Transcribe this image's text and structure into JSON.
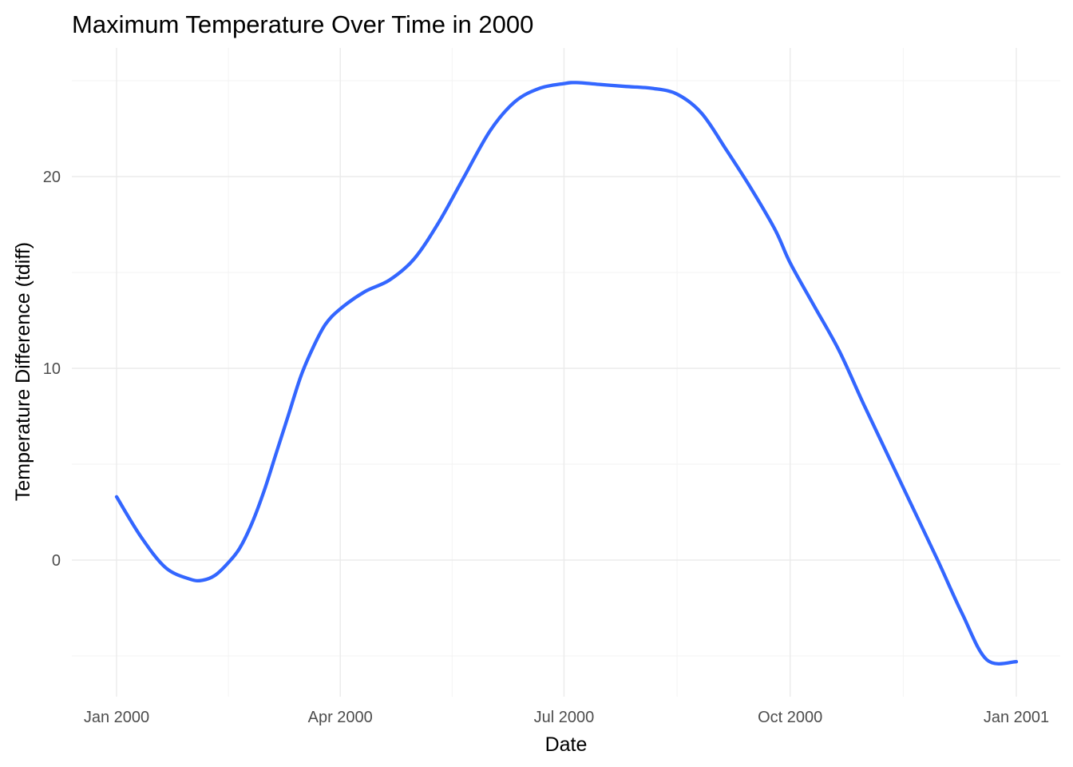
{
  "chart_data": {
    "type": "line",
    "title": "Maximum Temperature Over Time in 2000",
    "xlabel": "Date",
    "ylabel": "Temperature Difference (tdiff)",
    "x_ticks": [
      "Jan 2000",
      "Apr 2000",
      "Jul 2000",
      "Oct 2000",
      "Jan 2001"
    ],
    "x_tick_dates": [
      "2000-01-01",
      "2000-04-01",
      "2000-07-01",
      "2000-10-01",
      "2001-01-01"
    ],
    "y_ticks": [
      0,
      10,
      20
    ],
    "ylim": [
      -7,
      27
    ],
    "xlim": [
      "2000-01-01",
      "2001-01-01"
    ],
    "grid": true,
    "legend": "none",
    "series": [
      {
        "color": "#3366FF",
        "x": [
          "2000-01-01",
          "2000-01-11",
          "2000-01-21",
          "2000-01-31",
          "2000-02-05",
          "2000-02-10",
          "2000-02-15",
          "2000-02-20",
          "2000-02-25",
          "2000-03-01",
          "2000-03-06",
          "2000-03-11",
          "2000-03-16",
          "2000-03-21",
          "2000-03-26",
          "2000-04-01",
          "2000-04-11",
          "2000-04-21",
          "2000-05-01",
          "2000-05-11",
          "2000-05-21",
          "2000-06-01",
          "2000-06-11",
          "2000-06-21",
          "2000-07-01",
          "2000-07-06",
          "2000-07-16",
          "2000-07-26",
          "2000-08-06",
          "2000-08-16",
          "2000-08-26",
          "2000-09-05",
          "2000-09-15",
          "2000-09-25",
          "2000-10-01",
          "2000-10-11",
          "2000-10-21",
          "2000-10-31",
          "2000-11-10",
          "2000-11-20",
          "2000-11-30",
          "2000-12-10",
          "2000-12-20",
          "2001-01-01"
        ],
        "y": [
          3.3,
          1.2,
          -0.4,
          -1.0,
          -1.05,
          -0.8,
          -0.2,
          0.6,
          1.9,
          3.6,
          5.6,
          7.6,
          9.6,
          11.1,
          12.3,
          13.1,
          14.0,
          14.6,
          15.7,
          17.6,
          19.9,
          22.4,
          23.9,
          24.6,
          24.85,
          24.9,
          24.8,
          24.7,
          24.6,
          24.3,
          23.3,
          21.4,
          19.4,
          17.2,
          15.5,
          13.2,
          10.9,
          8.1,
          5.4,
          2.7,
          0.0,
          -2.8,
          -5.2,
          -5.3
        ]
      }
    ]
  }
}
